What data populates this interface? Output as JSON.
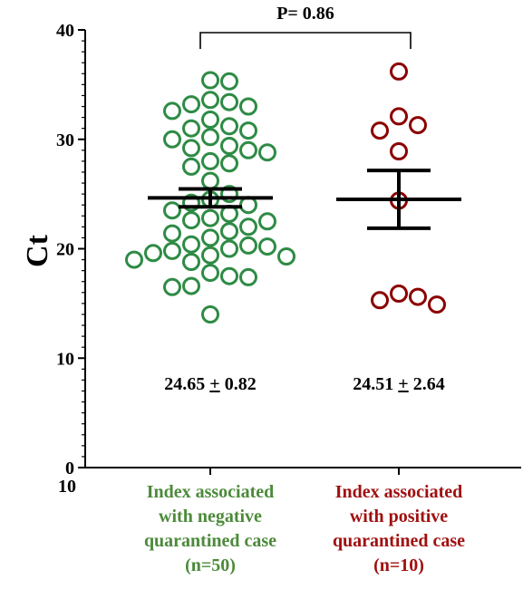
{
  "chart_data": {
    "type": "scatter",
    "title": "",
    "xlabel": "",
    "ylabel": "Ct",
    "ylim": [
      0,
      40
    ],
    "y_major_ticks": [
      0,
      10,
      20,
      30,
      40
    ],
    "y_tick_labels": [
      "0",
      "10",
      "20",
      "30",
      "40"
    ],
    "grid": false,
    "legend": "none",
    "x_origin_label": "10",
    "p_value_label": "P= 0.86",
    "categories": [
      "Index associated with negative quarantined case (n=50)",
      "Index associated with positive quarantined case (n=10)"
    ],
    "series": [
      {
        "label_lines": [
          "Index associated",
          "with negative",
          "quarantined case",
          "(n=50)"
        ],
        "color": "#2e8b45",
        "label_color": "#4c8a3a",
        "mean": 24.65,
        "sem": 0.82,
        "summary_value": "24.65",
        "summary_error": "0.82",
        "values": [
          35.4,
          35.3,
          33.4,
          33.2,
          33.0,
          33.6,
          32.6,
          31.8,
          31.2,
          31.0,
          30.8,
          30.2,
          30.0,
          29.4,
          29.2,
          29.0,
          28.8,
          28.0,
          27.8,
          27.5,
          26.2,
          25.0,
          24.5,
          24.2,
          24.0,
          23.5,
          23.2,
          22.8,
          22.6,
          22.5,
          22.0,
          21.6,
          21.4,
          21.0,
          20.4,
          20.3,
          20.2,
          20.0,
          19.8,
          19.6,
          19.4,
          19.3,
          19.0,
          18.8,
          17.8,
          17.5,
          17.4,
          16.6,
          16.5,
          14.0
        ]
      },
      {
        "label_lines": [
          "Index associated",
          "with positive",
          "quarantined case",
          "(n=10)"
        ],
        "color": "#8b0000",
        "label_color": "#a01010",
        "mean": 24.51,
        "sem": 2.64,
        "summary_value": "24.51",
        "summary_error": "2.64",
        "values": [
          36.2,
          32.1,
          31.3,
          30.8,
          28.9,
          24.4,
          15.9,
          15.6,
          15.3,
          14.9
        ]
      }
    ],
    "pm_symbol": "+"
  }
}
